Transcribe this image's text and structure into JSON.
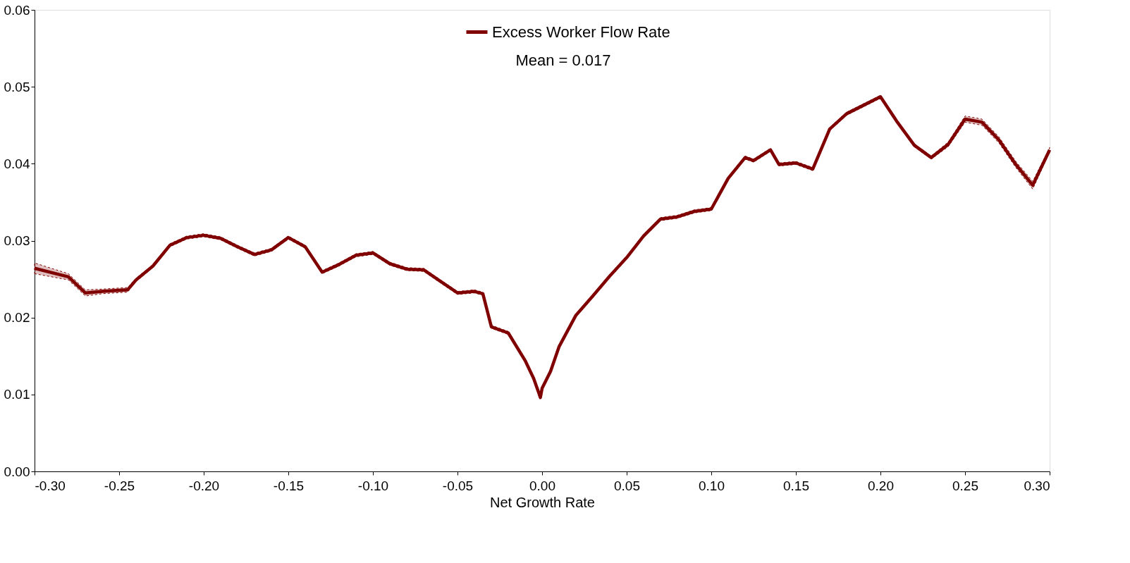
{
  "chart_data": {
    "type": "line",
    "xlabel": "Net Growth Rate",
    "x": [
      -0.3,
      -0.28,
      -0.27,
      -0.26,
      -0.245,
      -0.24,
      -0.23,
      -0.22,
      -0.21,
      -0.2,
      -0.19,
      -0.18,
      -0.17,
      -0.16,
      -0.15,
      -0.14,
      -0.13,
      -0.12,
      -0.11,
      -0.1,
      -0.09,
      -0.08,
      -0.07,
      -0.06,
      -0.05,
      -0.04,
      -0.035,
      -0.03,
      -0.02,
      -0.01,
      -0.005,
      -0.001,
      0.0,
      0.005,
      0.01,
      0.02,
      0.03,
      0.04,
      0.05,
      0.06,
      0.07,
      0.08,
      0.09,
      0.1,
      0.11,
      0.12,
      0.125,
      0.135,
      0.14,
      0.15,
      0.16,
      0.17,
      0.18,
      0.19,
      0.2,
      0.21,
      0.22,
      0.23,
      0.24,
      0.25,
      0.26,
      0.27,
      0.28,
      0.29,
      0.3
    ],
    "series": [
      {
        "name": "Excess Worker Flow Rate",
        "color": "#800000",
        "values": [
          0.0264,
          0.0253,
          0.0232,
          0.0234,
          0.0236,
          0.0249,
          0.0267,
          0.0294,
          0.0304,
          0.0307,
          0.0303,
          0.0292,
          0.0282,
          0.0288,
          0.0304,
          0.0292,
          0.0259,
          0.0269,
          0.0281,
          0.0284,
          0.027,
          0.0263,
          0.0262,
          0.0247,
          0.0232,
          0.0234,
          0.0231,
          0.0188,
          0.018,
          0.0144,
          0.0121,
          0.0096,
          0.0108,
          0.013,
          0.0162,
          0.0203,
          0.0228,
          0.0254,
          0.0278,
          0.0306,
          0.0328,
          0.0331,
          0.0338,
          0.0341,
          0.0381,
          0.0408,
          0.0404,
          0.0418,
          0.0399,
          0.0401,
          0.0393,
          0.0445,
          0.0465,
          0.0476,
          0.0487,
          0.0454,
          0.0424,
          0.0408,
          0.0425,
          0.0458,
          0.0454,
          0.0431,
          0.0399,
          0.0372,
          0.0418
        ],
        "lower": [
          0.0257,
          0.0249,
          0.0228,
          0.0231,
          0.0233,
          0.0247,
          0.0265,
          0.0292,
          0.0302,
          0.0305,
          0.0301,
          0.029,
          0.028,
          0.0286,
          0.0302,
          0.029,
          0.0257,
          0.0267,
          0.0279,
          0.0282,
          0.0268,
          0.0261,
          0.026,
          0.0245,
          0.023,
          0.0232,
          0.0229,
          0.0186,
          0.0178,
          0.0142,
          0.0119,
          0.0094,
          0.0106,
          0.0128,
          0.016,
          0.0201,
          0.0226,
          0.0252,
          0.0276,
          0.0304,
          0.0326,
          0.0329,
          0.0336,
          0.0339,
          0.0379,
          0.0406,
          0.0402,
          0.0416,
          0.0397,
          0.0399,
          0.0391,
          0.0443,
          0.0463,
          0.0474,
          0.0485,
          0.0452,
          0.0422,
          0.0406,
          0.0422,
          0.0454,
          0.045,
          0.0427,
          0.0395,
          0.0367,
          0.0415
        ],
        "upper": [
          0.0271,
          0.0257,
          0.0236,
          0.0237,
          0.0239,
          0.0251,
          0.0269,
          0.0296,
          0.0306,
          0.0309,
          0.0305,
          0.0294,
          0.0284,
          0.029,
          0.0306,
          0.0294,
          0.0261,
          0.0271,
          0.0283,
          0.0286,
          0.0272,
          0.0265,
          0.0264,
          0.0249,
          0.0234,
          0.0236,
          0.0233,
          0.019,
          0.0182,
          0.0146,
          0.0123,
          0.0098,
          0.011,
          0.0132,
          0.0164,
          0.0205,
          0.023,
          0.0256,
          0.028,
          0.0308,
          0.033,
          0.0333,
          0.034,
          0.0343,
          0.0383,
          0.041,
          0.0406,
          0.042,
          0.0401,
          0.0403,
          0.0395,
          0.0447,
          0.0467,
          0.0478,
          0.0489,
          0.0456,
          0.0426,
          0.041,
          0.0428,
          0.0462,
          0.0458,
          0.0435,
          0.0403,
          0.0377,
          0.0421
        ]
      }
    ],
    "xlim": [
      -0.3,
      0.3
    ],
    "xticks": [
      {
        "value": -0.3,
        "label": "-0.30"
      },
      {
        "value": -0.25,
        "label": "-0.25"
      },
      {
        "value": -0.2,
        "label": "-0.20"
      },
      {
        "value": -0.15,
        "label": "-0.15"
      },
      {
        "value": -0.1,
        "label": "-0.10"
      },
      {
        "value": -0.05,
        "label": "-0.05"
      },
      {
        "value": 0.0,
        "label": "0.00"
      },
      {
        "value": 0.05,
        "label": "0.05"
      },
      {
        "value": 0.1,
        "label": "0.10"
      },
      {
        "value": 0.15,
        "label": "0.15"
      },
      {
        "value": 0.2,
        "label": "0.20"
      },
      {
        "value": 0.25,
        "label": "0.25"
      },
      {
        "value": 0.3,
        "label": "0.30"
      }
    ],
    "ylim": [
      0,
      0.06
    ],
    "yticks": [
      {
        "value": 0,
        "label": "0.00"
      },
      {
        "value": 0.01,
        "label": "0.01"
      },
      {
        "value": 0.02,
        "label": "0.02"
      },
      {
        "value": 0.03,
        "label": "0.03"
      },
      {
        "value": 0.04,
        "label": "0.04"
      },
      {
        "value": 0.05,
        "label": "0.05"
      },
      {
        "value": 0.06,
        "label": "0.06"
      }
    ],
    "annotations": [
      "Mean = 0.017"
    ],
    "legend": "top",
    "grid": false,
    "line_style": "solid",
    "marker": "none"
  }
}
